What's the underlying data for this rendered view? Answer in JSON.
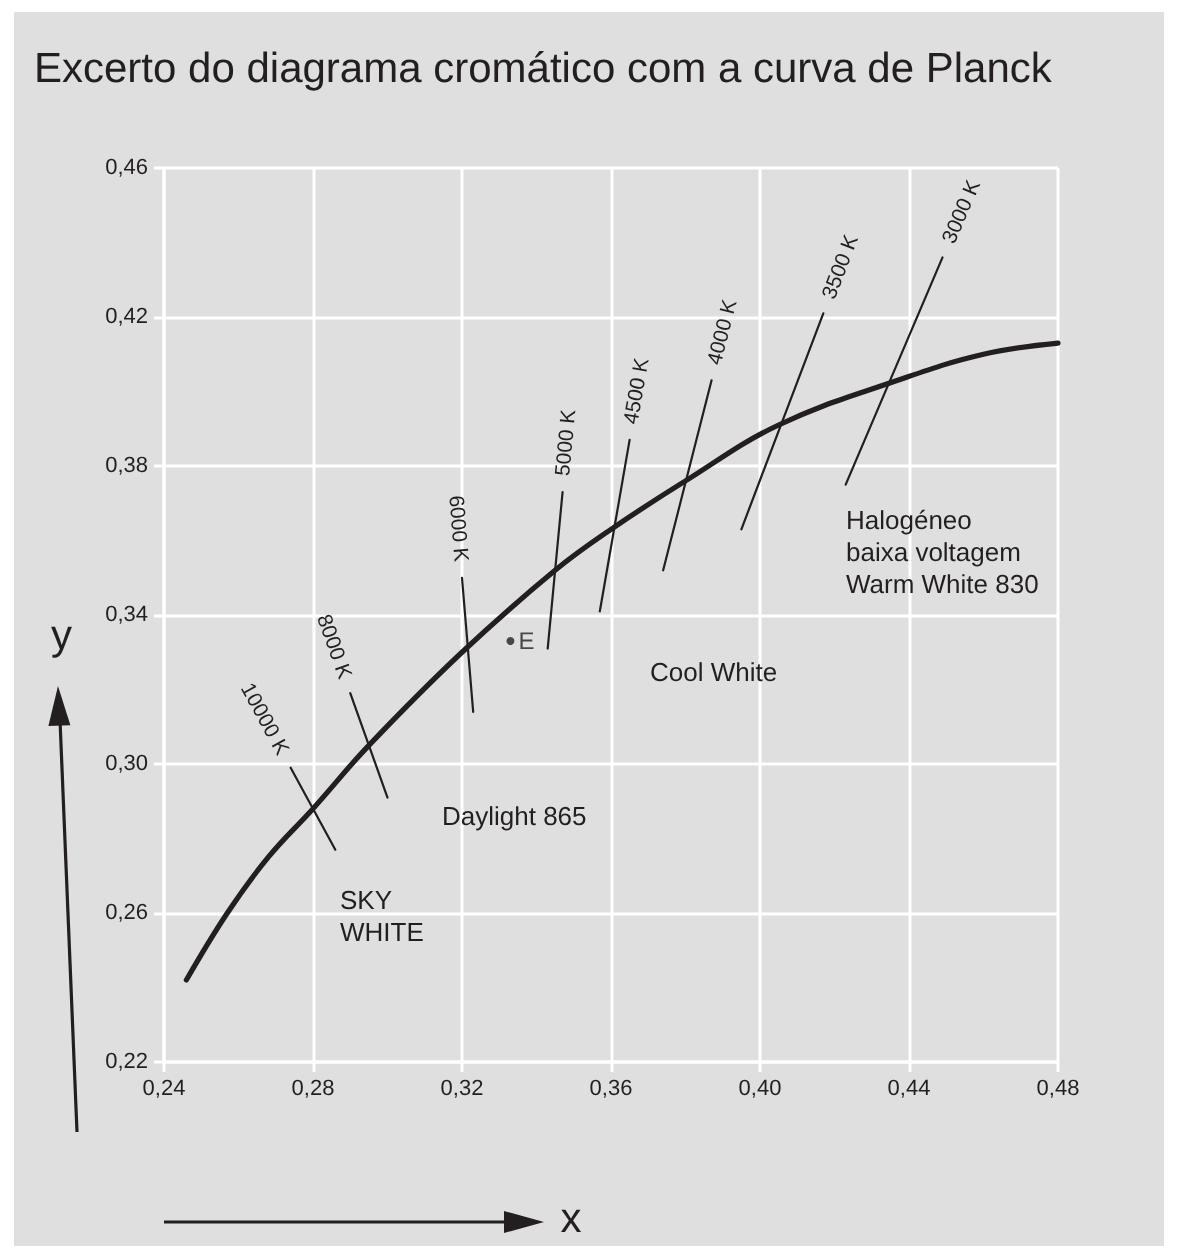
{
  "chart_data": {
    "type": "line",
    "title": "Excerto do diagrama cromático com a curva de Planck",
    "xlabel": "x",
    "ylabel": "y",
    "xlim": [
      0.24,
      0.48
    ],
    "ylim": [
      0.22,
      0.46
    ],
    "xticks": [
      {
        "value": 0.24,
        "label": "0,24"
      },
      {
        "value": 0.28,
        "label": "0,28"
      },
      {
        "value": 0.32,
        "label": "0,32"
      },
      {
        "value": 0.36,
        "label": "0,36"
      },
      {
        "value": 0.4,
        "label": "0,40"
      },
      {
        "value": 0.44,
        "label": "0,44"
      },
      {
        "value": 0.48,
        "label": "0,48"
      }
    ],
    "yticks": [
      {
        "value": 0.22,
        "label": "0,22"
      },
      {
        "value": 0.26,
        "label": "0,26"
      },
      {
        "value": 0.3,
        "label": "0,30"
      },
      {
        "value": 0.34,
        "label": "0,34"
      },
      {
        "value": 0.38,
        "label": "0,38"
      },
      {
        "value": 0.42,
        "label": "0,42"
      },
      {
        "value": 0.46,
        "label": "0,46"
      }
    ],
    "grid": true,
    "marker": "none",
    "series": [
      {
        "color": "#231f20",
        "x": [
          0.246,
          0.257,
          0.268,
          0.28,
          0.295,
          0.32,
          0.345,
          0.36,
          0.38,
          0.405,
          0.437,
          0.46,
          0.48
        ],
        "values": [
          0.242,
          0.26,
          0.275,
          0.288,
          0.305,
          0.33,
          0.352,
          0.363,
          0.376,
          0.391,
          0.403,
          0.41,
          0.413
        ]
      },
      {
        "name": "10000 K",
        "color": "#231f20",
        "x": [
          0.286,
          0.274
        ],
        "values": [
          0.277,
          0.299
        ]
      },
      {
        "name": "8000 K",
        "color": "#231f20",
        "x": [
          0.3,
          0.29
        ],
        "values": [
          0.291,
          0.319
        ]
      },
      {
        "name": "6000 K",
        "color": "#231f20",
        "x": [
          0.323,
          0.32
        ],
        "values": [
          0.314,
          0.35
        ]
      },
      {
        "name": "5000 K",
        "color": "#231f20",
        "x": [
          0.343,
          0.347
        ],
        "values": [
          0.331,
          0.373
        ]
      },
      {
        "name": "4500 K",
        "color": "#231f20",
        "x": [
          0.357,
          0.365
        ],
        "values": [
          0.341,
          0.387
        ]
      },
      {
        "name": "4000 K",
        "color": "#231f20",
        "x": [
          0.374,
          0.387
        ],
        "values": [
          0.352,
          0.403
        ]
      },
      {
        "name": "3500 K",
        "color": "#231f20",
        "x": [
          0.395,
          0.417
        ],
        "values": [
          0.363,
          0.421
        ]
      },
      {
        "name": "3000 K",
        "color": "#231f20",
        "x": [
          0.423,
          0.449
        ],
        "values": [
          0.375,
          0.436
        ]
      },
      {
        "type": "scatter",
        "name": "E",
        "color": "#231f20",
        "marker": "circle",
        "x": [
          0.333
        ],
        "values": [
          0.333
        ]
      }
    ],
    "annotations": [
      "SKY\nWHITE",
      "Daylight 865",
      "Cool White",
      "Halogéneo\nbaixa voltagem\nWarm White 830"
    ]
  }
}
